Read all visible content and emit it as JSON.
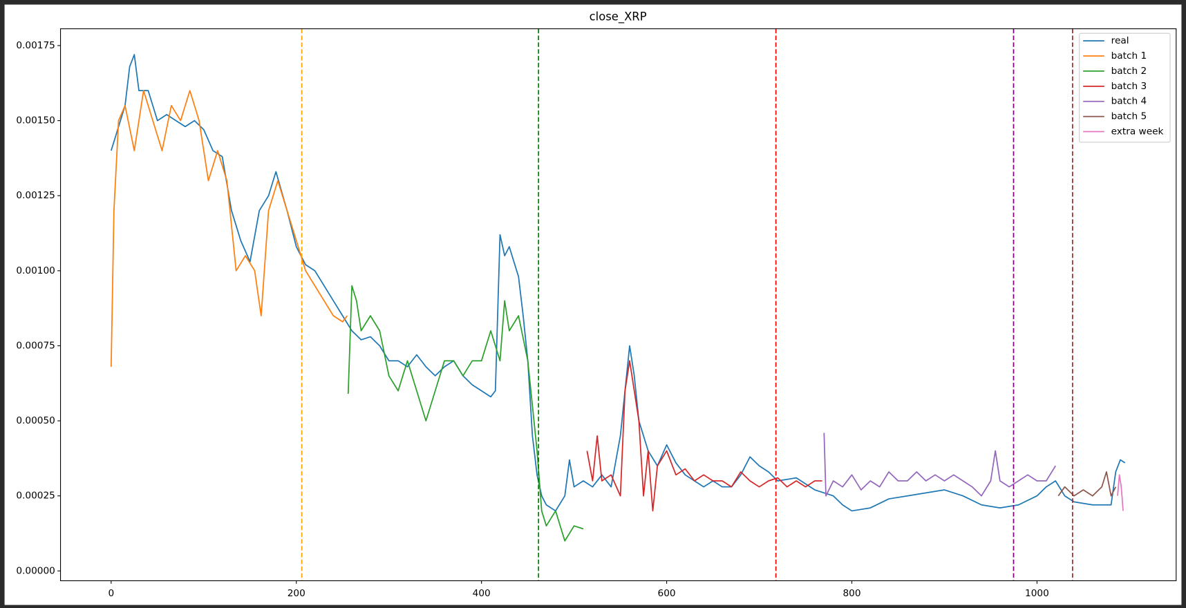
{
  "chart_data": {
    "type": "line",
    "title": "close_XRP",
    "xlim": [
      -54.7,
      1150.3
    ],
    "ylim": [
      -3.27e-05,
      0.001806
    ],
    "xticks": [
      0,
      200,
      400,
      600,
      800,
      1000
    ],
    "yticks": [
      {
        "value": 0,
        "label": "0.00000"
      },
      {
        "value": 0.00025,
        "label": "0.00025"
      },
      {
        "value": 0.0005,
        "label": "0.00050"
      },
      {
        "value": 0.00075,
        "label": "0.00075"
      },
      {
        "value": 0.001,
        "label": "0.00100"
      },
      {
        "value": 0.00125,
        "label": "0.00125"
      },
      {
        "value": 0.0015,
        "label": "0.00150"
      },
      {
        "value": 0.00175,
        "label": "0.00175"
      }
    ],
    "grid": false,
    "legend": "upper right",
    "vlines": [
      {
        "x": 205.9,
        "color": "orange"
      },
      {
        "x": 461.6,
        "color": "green"
      },
      {
        "x": 718,
        "color": "red"
      },
      {
        "x": 974.7,
        "color": "purple"
      },
      {
        "x": 1038.4,
        "color": "brown"
      }
    ],
    "series": [
      {
        "name": "real",
        "color": "#1f77b4",
        "x": [
          0,
          5,
          10,
          15,
          20,
          25,
          30,
          40,
          50,
          60,
          70,
          80,
          90,
          100,
          110,
          120,
          130,
          140,
          150,
          160,
          170,
          178,
          190,
          200,
          210,
          220,
          230,
          240,
          250,
          260,
          270,
          280,
          290,
          300,
          310,
          320,
          330,
          340,
          350,
          360,
          370,
          380,
          390,
          400,
          410,
          415,
          420,
          425,
          430,
          440,
          445,
          450,
          455,
          460,
          465,
          470,
          480,
          490,
          495,
          500,
          510,
          520,
          530,
          540,
          550,
          560,
          565,
          570,
          580,
          590,
          600,
          610,
          620,
          630,
          640,
          650,
          660,
          670,
          680,
          690,
          700,
          710,
          720,
          740,
          760,
          780,
          790,
          800,
          820,
          840,
          860,
          880,
          900,
          920,
          940,
          960,
          980,
          1000,
          1010,
          1020,
          1030,
          1040,
          1060,
          1080,
          1085,
          1090,
          1095
        ],
        "values": [
          0.0014,
          0.00145,
          0.0015,
          0.00155,
          0.00168,
          0.00172,
          0.0016,
          0.0016,
          0.0015,
          0.00152,
          0.0015,
          0.00148,
          0.0015,
          0.00147,
          0.0014,
          0.00138,
          0.0012,
          0.0011,
          0.00103,
          0.0012,
          0.00125,
          0.00133,
          0.0012,
          0.00108,
          0.00102,
          0.001,
          0.00095,
          0.0009,
          0.00085,
          0.0008,
          0.00077,
          0.00078,
          0.00075,
          0.0007,
          0.0007,
          0.00068,
          0.00072,
          0.00068,
          0.00065,
          0.00068,
          0.0007,
          0.00065,
          0.00062,
          0.0006,
          0.00058,
          0.0006,
          0.00112,
          0.00105,
          0.00108,
          0.00098,
          0.00085,
          0.0007,
          0.00045,
          0.00032,
          0.00025,
          0.00022,
          0.0002,
          0.00025,
          0.00037,
          0.00028,
          0.0003,
          0.00028,
          0.00032,
          0.00028,
          0.00045,
          0.00075,
          0.00065,
          0.0005,
          0.0004,
          0.00035,
          0.00042,
          0.00036,
          0.00032,
          0.0003,
          0.00028,
          0.0003,
          0.00028,
          0.00028,
          0.00032,
          0.00038,
          0.00035,
          0.00033,
          0.0003,
          0.00031,
          0.00027,
          0.00025,
          0.00022,
          0.0002,
          0.00021,
          0.00024,
          0.00025,
          0.00026,
          0.00027,
          0.00025,
          0.00022,
          0.00021,
          0.00022,
          0.00025,
          0.00028,
          0.0003,
          0.00025,
          0.00023,
          0.00022,
          0.00022,
          0.00033,
          0.00037,
          0.00036
        ]
      },
      {
        "name": "batch 1",
        "color": "#ff7f0e",
        "x": [
          0,
          3,
          8,
          15,
          25,
          35,
          45,
          55,
          65,
          75,
          85,
          95,
          105,
          115,
          125,
          135,
          145,
          155,
          162,
          170,
          180,
          190,
          200,
          210,
          220,
          230,
          240,
          250,
          255
        ],
        "values": [
          0.00068,
          0.0012,
          0.0015,
          0.00155,
          0.0014,
          0.0016,
          0.0015,
          0.0014,
          0.00155,
          0.0015,
          0.0016,
          0.0015,
          0.0013,
          0.0014,
          0.0013,
          0.001,
          0.00105,
          0.001,
          0.00085,
          0.0012,
          0.0013,
          0.0012,
          0.0011,
          0.001,
          0.00095,
          0.0009,
          0.00085,
          0.00083,
          0.00085
        ]
      },
      {
        "name": "batch 2",
        "color": "#2ca02c",
        "x": [
          256,
          260,
          265,
          270,
          280,
          290,
          300,
          310,
          320,
          330,
          340,
          350,
          360,
          370,
          380,
          390,
          400,
          410,
          420,
          425,
          430,
          440,
          450,
          460,
          465,
          470,
          480,
          490,
          500,
          510
        ],
        "values": [
          0.00059,
          0.00095,
          0.0009,
          0.0008,
          0.00085,
          0.0008,
          0.00065,
          0.0006,
          0.0007,
          0.0006,
          0.0005,
          0.0006,
          0.0007,
          0.0007,
          0.00065,
          0.0007,
          0.0007,
          0.0008,
          0.0007,
          0.0009,
          0.0008,
          0.00085,
          0.0007,
          0.0004,
          0.0002,
          0.00015,
          0.0002,
          0.0001,
          0.00015,
          0.00014
        ]
      },
      {
        "name": "batch 3",
        "color": "#d62728",
        "x": [
          514,
          520,
          525,
          530,
          540,
          550,
          555,
          560,
          565,
          570,
          575,
          580,
          585,
          590,
          600,
          610,
          620,
          630,
          640,
          650,
          660,
          670,
          680,
          690,
          700,
          710,
          720,
          730,
          740,
          750,
          760,
          768
        ],
        "values": [
          0.0004,
          0.0003,
          0.00045,
          0.0003,
          0.00032,
          0.00025,
          0.0006,
          0.0007,
          0.0006,
          0.0005,
          0.00025,
          0.0004,
          0.0002,
          0.00035,
          0.0004,
          0.00032,
          0.00034,
          0.0003,
          0.00032,
          0.0003,
          0.0003,
          0.00028,
          0.00033,
          0.0003,
          0.00028,
          0.0003,
          0.00031,
          0.00028,
          0.0003,
          0.00028,
          0.0003,
          0.0003
        ]
      },
      {
        "name": "batch 4",
        "color": "#9467bd",
        "x": [
          770,
          772,
          780,
          790,
          800,
          810,
          820,
          830,
          840,
          850,
          860,
          870,
          880,
          890,
          900,
          910,
          920,
          930,
          940,
          950,
          955,
          960,
          970,
          980,
          990,
          1000,
          1010,
          1020
        ],
        "values": [
          0.00046,
          0.00025,
          0.0003,
          0.00028,
          0.00032,
          0.00027,
          0.0003,
          0.00028,
          0.00033,
          0.0003,
          0.0003,
          0.00033,
          0.0003,
          0.00032,
          0.0003,
          0.00032,
          0.0003,
          0.00028,
          0.00025,
          0.0003,
          0.0004,
          0.0003,
          0.00028,
          0.0003,
          0.00032,
          0.0003,
          0.0003,
          0.00035
        ]
      },
      {
        "name": "batch 5",
        "color": "#8c564b",
        "x": [
          1023,
          1030,
          1040,
          1050,
          1060,
          1070,
          1075,
          1080,
          1085
        ],
        "values": [
          0.00025,
          0.00028,
          0.00025,
          0.00027,
          0.00025,
          0.00028,
          0.00033,
          0.00025,
          0.00028
        ]
      },
      {
        "name": "extra week",
        "color": "#e377c2",
        "x": [
          1087,
          1089,
          1091,
          1093
        ],
        "values": [
          0.00025,
          0.00032,
          0.00028,
          0.0002
        ]
      }
    ]
  }
}
